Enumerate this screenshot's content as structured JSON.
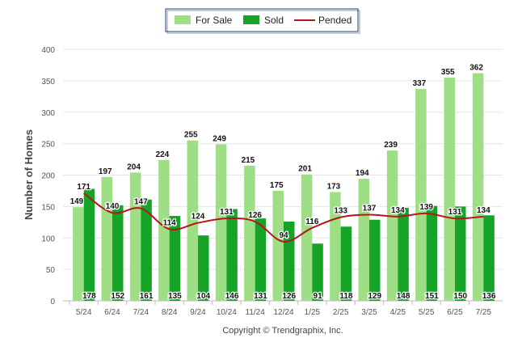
{
  "chart_data": {
    "type": "bar",
    "ylabel": "Number of Homes",
    "ylim": [
      0,
      400
    ],
    "yticks": [
      0,
      50,
      100,
      150,
      200,
      250,
      300,
      350,
      400
    ],
    "grid": true,
    "legend_position": "top-center",
    "categories": [
      "5/24",
      "6/24",
      "7/24",
      "8/24",
      "9/24",
      "10/24",
      "11/24",
      "12/24",
      "1/25",
      "2/25",
      "3/25",
      "4/25",
      "5/25",
      "6/25",
      "7/25"
    ],
    "series": [
      {
        "name": "For Sale",
        "type": "bar",
        "color": "#9edf86",
        "values": [
          149,
          197,
          204,
          224,
          255,
          249,
          215,
          175,
          201,
          173,
          194,
          239,
          337,
          355,
          362
        ]
      },
      {
        "name": "Sold",
        "type": "bar",
        "color": "#15a428",
        "values": [
          178,
          152,
          161,
          135,
          104,
          146,
          131,
          126,
          91,
          118,
          129,
          148,
          151,
          150,
          136
        ]
      },
      {
        "name": "Pended",
        "type": "line",
        "color": "#b5161b",
        "values": [
          171,
          140,
          147,
          114,
          124,
          131,
          126,
          94,
          116,
          133,
          137,
          134,
          139,
          131,
          134
        ]
      }
    ],
    "footer": "Copyright © Trendgraphix, Inc."
  }
}
